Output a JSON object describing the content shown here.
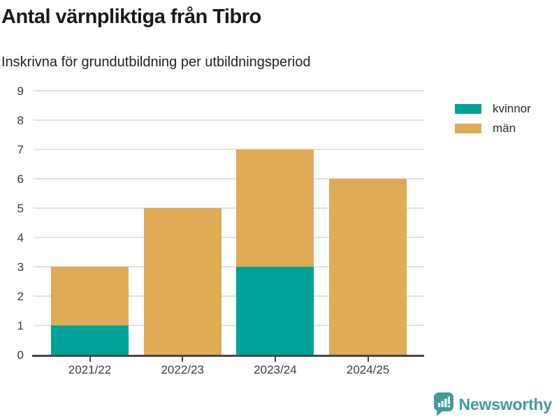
{
  "header": {
    "title": "Antal värnpliktiga från Tibro",
    "subtitle": "Inskrivna för grundutbildning per utbildningsperiod"
  },
  "colors": {
    "kvinnor": "#00A299",
    "man": "#DFAB55",
    "axis": "#474747",
    "grid": "#E2E2E2",
    "tick_text": "#3C3C3C",
    "brand_teal": "#3F9D97"
  },
  "legend": {
    "items": [
      {
        "label": "kvinnor",
        "color_key": "kvinnor"
      },
      {
        "label": "män",
        "color_key": "man"
      }
    ]
  },
  "footer": {
    "brand": "Newsworthy",
    "logo_icon": "bar-chart-speech-bubble-icon"
  },
  "chart_data": {
    "type": "bar",
    "stacked": true,
    "title": "Antal värnpliktiga från Tibro",
    "subtitle": "Inskrivna för grundutbildning per utbildningsperiod",
    "categories": [
      "2021/22",
      "2022/23",
      "2023/24",
      "2024/25"
    ],
    "series": [
      {
        "name": "kvinnor",
        "values": [
          1,
          0,
          3,
          0
        ]
      },
      {
        "name": "män",
        "values": [
          2,
          5,
          4,
          6
        ]
      }
    ],
    "totals": [
      3,
      5,
      7,
      6
    ],
    "xlabel": "",
    "ylabel": "",
    "ylim": [
      0,
      9
    ],
    "ytick_step": 1,
    "grid": true,
    "legend_position": "right"
  }
}
